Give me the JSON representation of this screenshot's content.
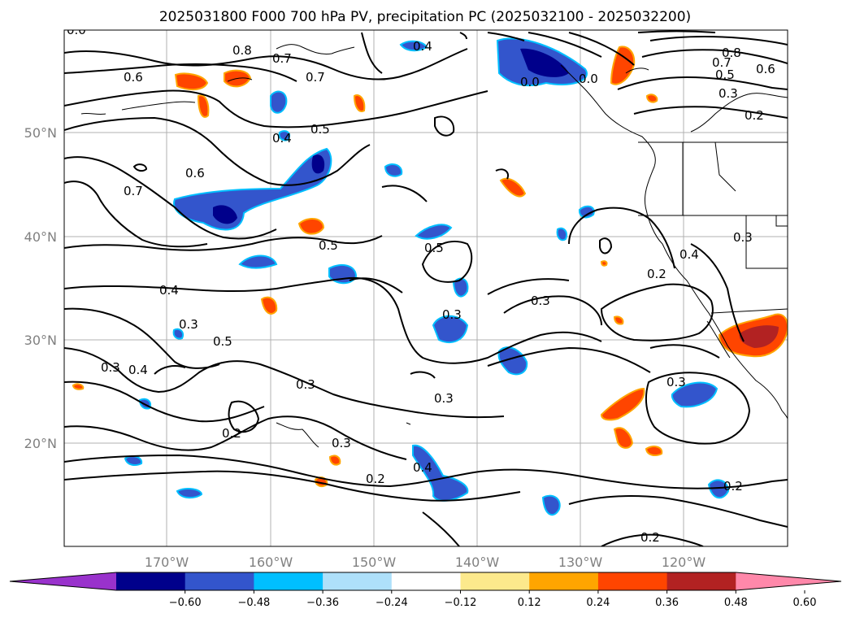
{
  "title": "2025031800 F000 700 hPa PV, precipitation PC (2025032100 - 2025032200)",
  "map": {
    "lon_labels": [
      "170°W",
      "160°W",
      "150°W",
      "140°W",
      "130°W",
      "120°W"
    ],
    "lat_labels": [
      "50°N",
      "40°N",
      "30°N",
      "20°N"
    ],
    "contour_labels": [
      "0.8",
      "0.7",
      "0.6",
      "0.4",
      "0.7",
      "0.5",
      "0.4",
      "0.6",
      "0.7",
      "0.5",
      "0.4",
      "0.3",
      "0.5",
      "0.3",
      "0.4",
      "0.3",
      "0.2",
      "0.3",
      "0.2",
      "0.4",
      "0.5",
      "0.3",
      "0.3",
      "0.3",
      "0.8",
      "0.7",
      "0.5",
      "0.6",
      "0.3",
      "0.2",
      "0.4",
      "0.2",
      "0.3",
      "0.3",
      "0.2",
      "0.2",
      "0.0",
      "0.0",
      "0.0"
    ]
  },
  "colorbar": {
    "tick_labels": [
      "−0.60",
      "−0.48",
      "−0.36",
      "−0.24",
      "−0.12",
      "0.12",
      "0.24",
      "0.36",
      "0.48",
      "0.60"
    ],
    "colors": [
      "#9932cc",
      "#00008b",
      "#3355cc",
      "#00bfff",
      "#aee0fa",
      "#ffffff",
      "#fce98c",
      "#ffa500",
      "#ff4500",
      "#b22222",
      "#ff88aa"
    ]
  }
}
